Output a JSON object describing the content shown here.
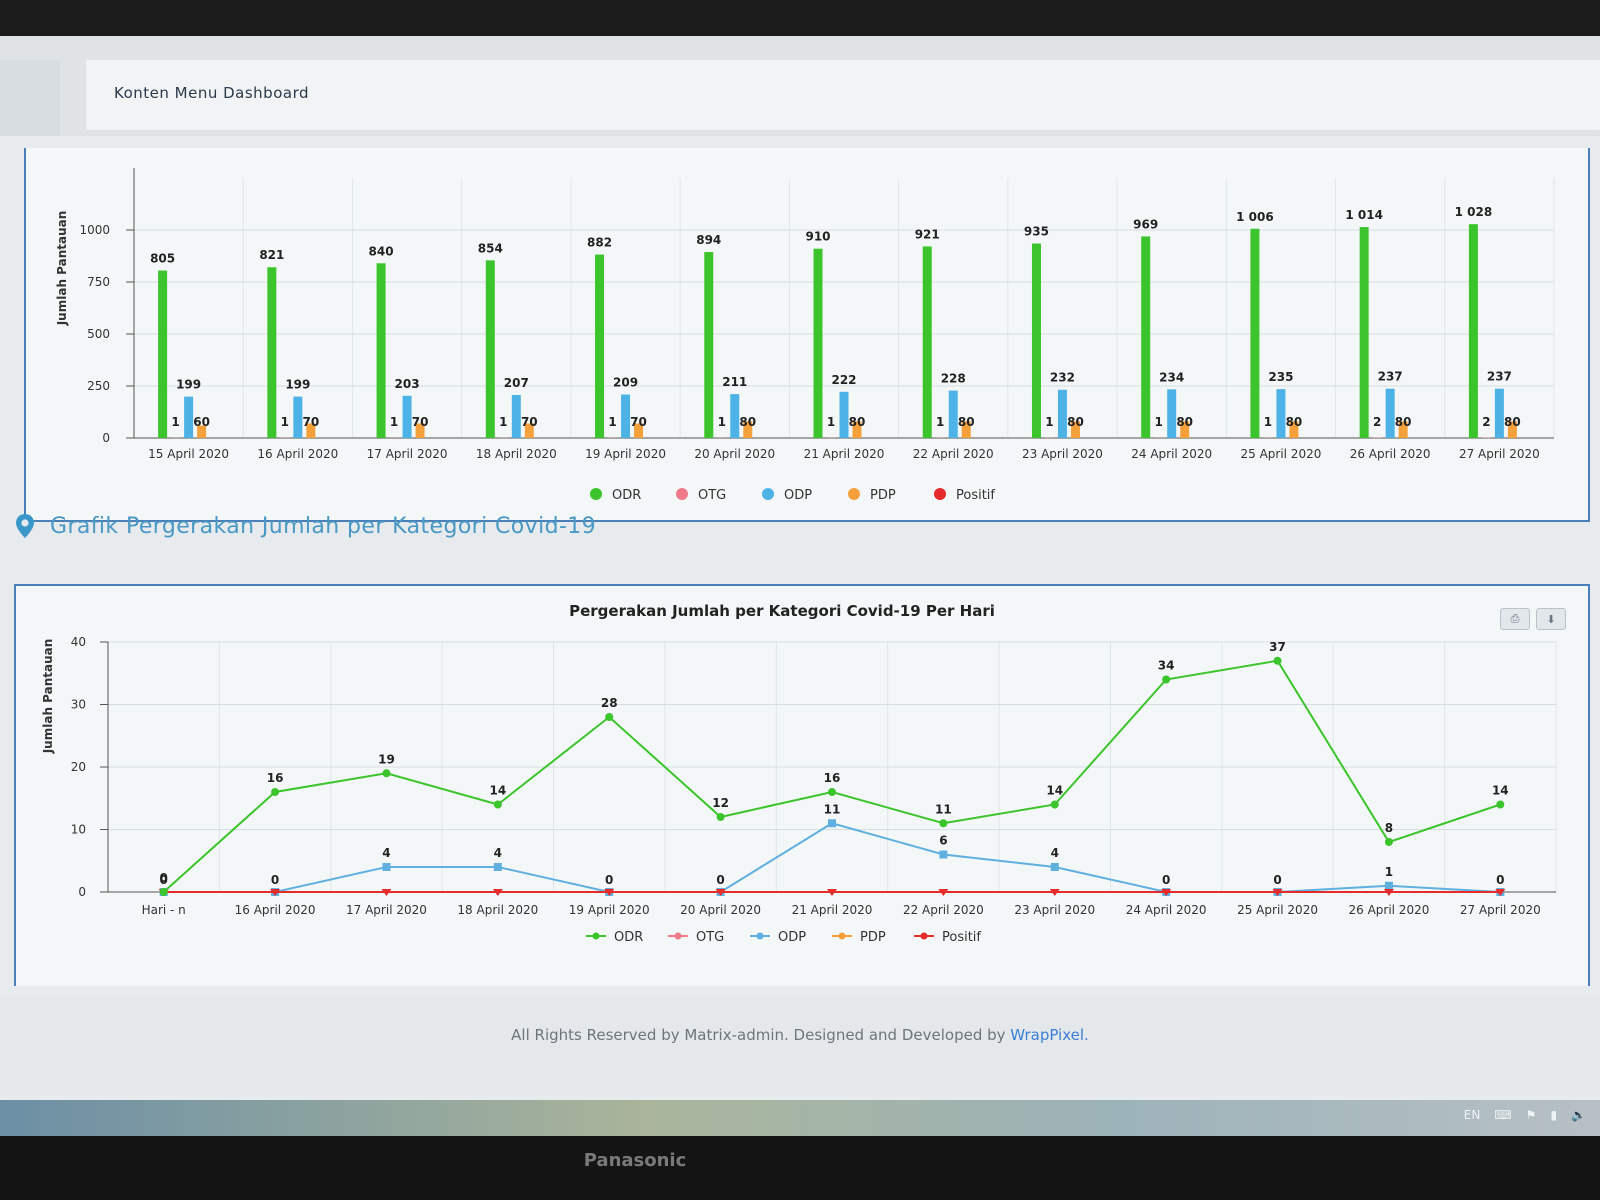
{
  "breadcrumb": {
    "title": "Konten Menu Dashboard"
  },
  "section": {
    "title": "Grafik Pergerakan Jumlah per Kategori Covid-19"
  },
  "footer": {
    "text": "All Rights Reserved by Matrix-admin. Designed and Developed by",
    "link": "WrapPixel."
  },
  "taskbar": {
    "lang": "EN"
  },
  "bezel": {
    "brand": "Panasonic"
  },
  "chart_data": [
    {
      "type": "bar",
      "title": "",
      "ylabel": "Jumlah Pantauan",
      "ylim": [
        0,
        1250
      ],
      "yticks": [
        0,
        250,
        500,
        750,
        1000
      ],
      "grid": true,
      "legend": "bottom",
      "categories": [
        "15 April 2020",
        "16 April 2020",
        "17 April 2020",
        "18 April 2020",
        "19 April 2020",
        "20 April 2020",
        "21 April 2020",
        "22 April 2020",
        "23 April 2020",
        "24 April 2020",
        "25 April 2020",
        "26 April 2020",
        "27 April 2020"
      ],
      "series": [
        {
          "name": "ODR",
          "color": "#3cc42c",
          "values": [
            805,
            821,
            840,
            854,
            882,
            894,
            910,
            921,
            935,
            969,
            1006,
            1014,
            1028
          ],
          "labels": [
            "805",
            "821",
            "840",
            "854",
            "882",
            "894",
            "910",
            "921",
            "935",
            "969",
            "1 006",
            "1 014",
            "1 028"
          ]
        },
        {
          "name": "OTG",
          "color": "#f07a8a",
          "values": [
            1,
            1,
            1,
            1,
            1,
            1,
            1,
            1,
            1,
            1,
            1,
            2,
            2
          ]
        },
        {
          "name": "ODP",
          "color": "#4db3e6",
          "values": [
            199,
            199,
            203,
            207,
            209,
            211,
            222,
            228,
            232,
            234,
            235,
            237,
            237
          ]
        },
        {
          "name": "PDP",
          "color": "#f4a13c",
          "values": [
            60,
            70,
            70,
            70,
            70,
            80,
            80,
            80,
            80,
            80,
            80,
            80,
            80
          ]
        },
        {
          "name": "Positif",
          "color": "#e52b2b",
          "values": [
            0,
            0,
            0,
            0,
            0,
            0,
            0,
            0,
            0,
            0,
            0,
            0,
            0
          ]
        }
      ]
    },
    {
      "type": "line",
      "title": "Pergerakan Jumlah per Kategori Covid-19 Per Hari",
      "ylabel": "Jumlah Pantauan",
      "ylim": [
        0,
        40
      ],
      "yticks": [
        0,
        10,
        20,
        30,
        40
      ],
      "grid": true,
      "legend": "bottom",
      "categories": [
        "Hari - n",
        "16 April 2020",
        "17 April 2020",
        "18 April 2020",
        "19 April 2020",
        "20 April 2020",
        "21 April 2020",
        "22 April 2020",
        "23 April 2020",
        "24 April 2020",
        "25 April 2020",
        "26 April 2020",
        "27 April 2020"
      ],
      "series": [
        {
          "name": "ODR",
          "color": "#3cc42c",
          "values": [
            0,
            16,
            19,
            14,
            28,
            12,
            16,
            11,
            14,
            34,
            37,
            8,
            14
          ]
        },
        {
          "name": "OTG",
          "color": "#f07a8a",
          "values": [
            0,
            0,
            0,
            0,
            0,
            0,
            0,
            0,
            0,
            0,
            0,
            0,
            0
          ]
        },
        {
          "name": "ODP",
          "color": "#5fb0de",
          "values": [
            0,
            0,
            4,
            4,
            0,
            0,
            11,
            6,
            4,
            0,
            0,
            1,
            0
          ]
        },
        {
          "name": "PDP",
          "color": "#f4a13c",
          "values": [
            0,
            0,
            0,
            0,
            0,
            0,
            0,
            0,
            0,
            0,
            0,
            0,
            0
          ]
        },
        {
          "name": "Positif",
          "color": "#e52b2b",
          "values": [
            0,
            0,
            0,
            0,
            0,
            0,
            0,
            0,
            0,
            0,
            0,
            0,
            0
          ]
        }
      ]
    }
  ]
}
